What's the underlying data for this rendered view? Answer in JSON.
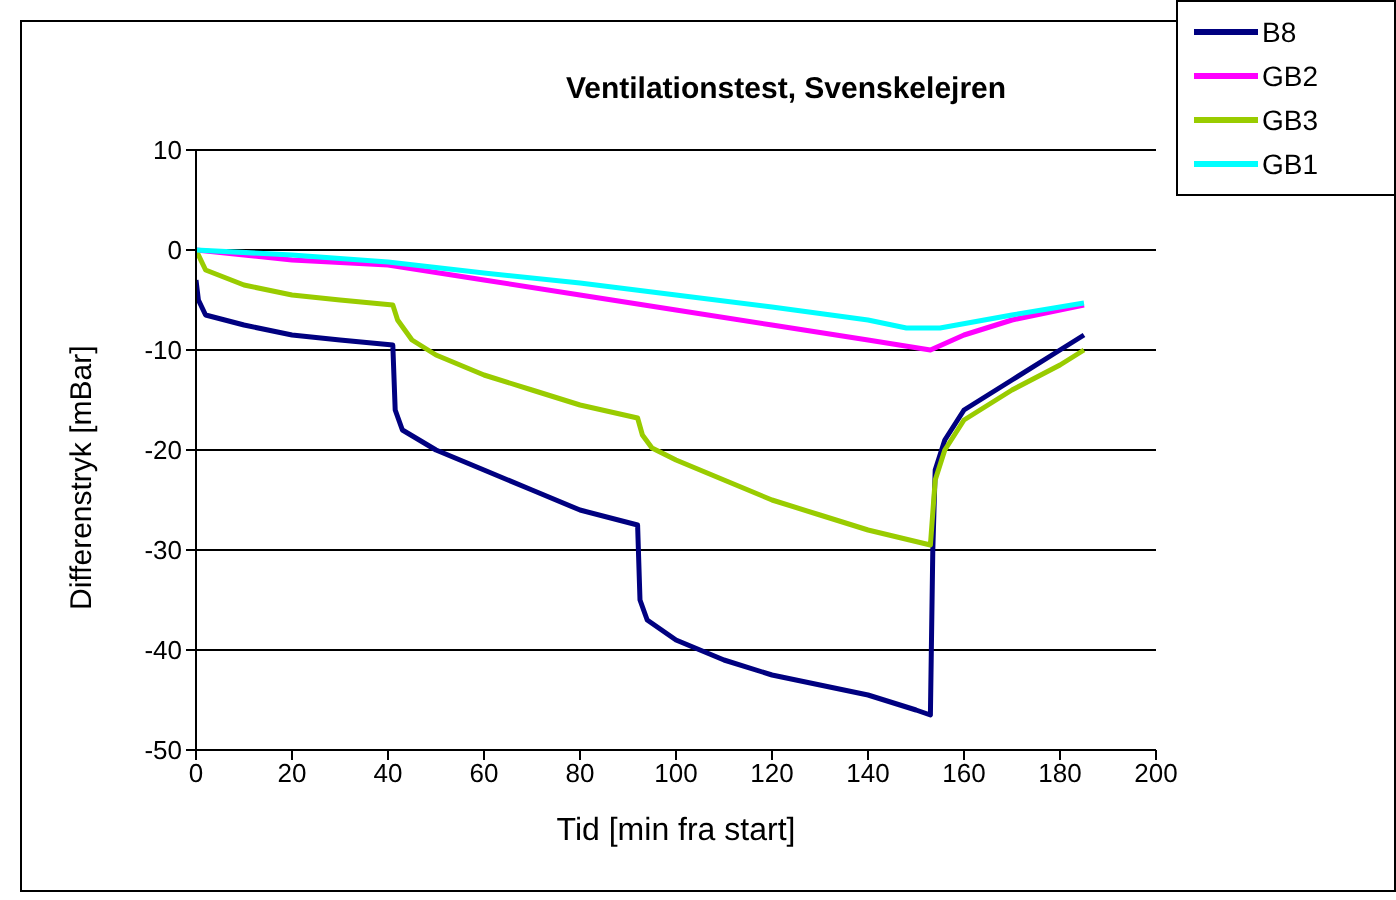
{
  "chart_data": {
    "type": "line",
    "title": "Ventilationstest, Svenskelejren",
    "xlabel": "Tid [min fra start]",
    "ylabel": "Differenstryk [mBar]",
    "xlim": [
      0,
      200
    ],
    "xticks": [
      0,
      20,
      40,
      60,
      80,
      100,
      120,
      140,
      160,
      180,
      200
    ],
    "ylim": [
      -50,
      10
    ],
    "yticks": [
      -50,
      -40,
      -30,
      -20,
      -10,
      0,
      10
    ],
    "grid": "y",
    "legend": "top right",
    "marker": "none",
    "line_style": "solid",
    "series": [
      {
        "name": "B8",
        "color": "#000080",
        "x": [
          0,
          0.5,
          2,
          10,
          20,
          30,
          41,
          41.5,
          43,
          50,
          60,
          70,
          80,
          92,
          92.5,
          94,
          100,
          110,
          120,
          130,
          140,
          150,
          153,
          153.5,
          154,
          156,
          160,
          170,
          180,
          185
        ],
        "values": [
          -3,
          -5,
          -6.5,
          -7.5,
          -8.5,
          -9,
          -9.5,
          -16,
          -18,
          -20,
          -22,
          -24,
          -26,
          -27.5,
          -35,
          -37,
          -39,
          -41,
          -42.5,
          -43.5,
          -44.5,
          -46,
          -46.5,
          -30,
          -22,
          -19,
          -16,
          -13,
          -10,
          -8.5
        ]
      },
      {
        "name": "GB2",
        "color": "#ff00ff",
        "x": [
          0,
          10,
          20,
          40,
          60,
          80,
          100,
          120,
          140,
          153,
          160,
          170,
          185
        ],
        "values": [
          0,
          -0.5,
          -1,
          -1.5,
          -3,
          -4.5,
          -6,
          -7.5,
          -9,
          -10,
          -8.5,
          -7,
          -5.5
        ]
      },
      {
        "name": "GB3",
        "color": "#99cc00",
        "x": [
          0,
          2,
          10,
          20,
          30,
          41,
          42,
          45,
          50,
          60,
          70,
          80,
          92,
          93,
          95,
          100,
          110,
          120,
          130,
          140,
          153,
          154,
          156,
          160,
          170,
          180,
          185
        ],
        "values": [
          0,
          -2,
          -3.5,
          -4.5,
          -5,
          -5.5,
          -7,
          -9,
          -10.5,
          -12.5,
          -14,
          -15.5,
          -16.8,
          -18.5,
          -19.8,
          -21,
          -23,
          -25,
          -26.5,
          -28,
          -29.5,
          -23,
          -20,
          -17,
          -14,
          -11.5,
          -10
        ]
      },
      {
        "name": "GB1",
        "color": "#00ffff",
        "x": [
          0,
          20,
          40,
          60,
          80,
          100,
          120,
          140,
          148,
          155,
          170,
          185
        ],
        "values": [
          0,
          -0.5,
          -1.2,
          -2.3,
          -3.3,
          -4.5,
          -5.7,
          -7,
          -7.8,
          -7.8,
          -6.5,
          -5.3
        ]
      }
    ]
  }
}
